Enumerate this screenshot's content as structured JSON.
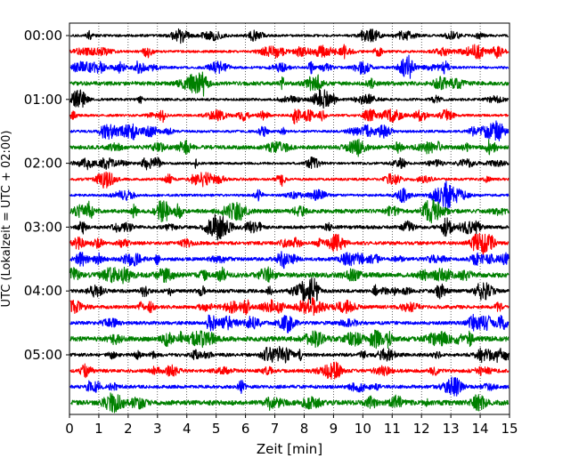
{
  "chart_data": {
    "type": "line",
    "subtype": "helicorder",
    "title": "",
    "xlabel": "Zeit  [min]",
    "ylabel": "UTC (Lokalzeit = UTC + 02:00)",
    "xlim": [
      0,
      15
    ],
    "x_ticks": [
      0,
      1,
      2,
      3,
      4,
      5,
      6,
      7,
      8,
      9,
      10,
      11,
      12,
      13,
      14,
      15
    ],
    "x_tick_labels": [
      "0",
      "1",
      "2",
      "3",
      "4",
      "5",
      "6",
      "7",
      "8",
      "9",
      "10",
      "11",
      "12",
      "13",
      "14",
      "15"
    ],
    "row_interval_minutes": 15,
    "rows": 24,
    "y_tick_labels": [
      {
        "row": 0,
        "label": "00:00"
      },
      {
        "row": 4,
        "label": "01:00"
      },
      {
        "row": 8,
        "label": "02:00"
      },
      {
        "row": 12,
        "label": "03:00"
      },
      {
        "row": 16,
        "label": "04:00"
      },
      {
        "row": 20,
        "label": "05:00"
      }
    ],
    "trace_colors": [
      "#000000",
      "#ff0000",
      "#0000ff",
      "#008000"
    ],
    "grid": "vertical dotted",
    "legend": "none"
  }
}
